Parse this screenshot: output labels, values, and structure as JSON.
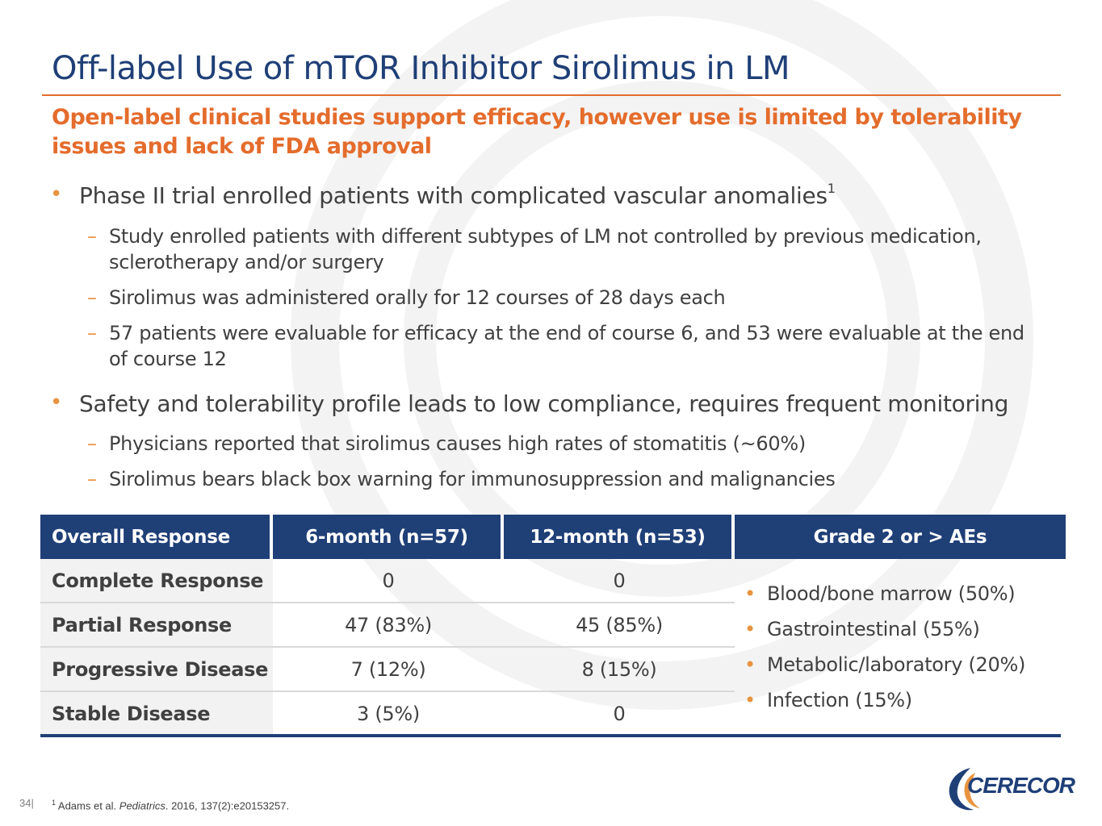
{
  "title": "Off-label Use of mTOR Inhibitor Sirolimus in LM",
  "subtitle": "Open-label clinical studies support efficacy, however use is limited by tolerability issues and lack of FDA approval",
  "bullets": [
    {
      "text": "Phase II trial enrolled patients with complicated vascular anomalies",
      "sup": "1",
      "sub": [
        "Study enrolled patients with different subtypes of LM not controlled by previous medication, sclerotherapy and/or surgery",
        "Sirolimus was administered orally for 12 courses of 28 days each",
        "57 patients were evaluable for efficacy at the end of course 6, and 53 were evaluable at the end of course 12"
      ]
    },
    {
      "text": "Safety and tolerability profile leads to low compliance, requires frequent monitoring",
      "sub": [
        "Physicians reported that sirolimus causes high rates of stomatitis (~60%)",
        "Sirolimus bears black box warning for immunosuppression and malignancies"
      ]
    }
  ],
  "bullet_marker": "•",
  "sub_marker": "–",
  "table": {
    "headers": [
      "Overall Response",
      "6-month (n=57)",
      "12-month (n=53)",
      "Grade 2 or > AEs"
    ],
    "rows": [
      [
        "Complete Response",
        "0",
        "0"
      ],
      [
        "Partial Response",
        "47 (83%)",
        "45 (85%)"
      ],
      [
        "Progressive Disease",
        "7 (12%)",
        "8 (15%)"
      ],
      [
        "Stable Disease",
        "3 (5%)",
        "0"
      ]
    ],
    "adverse_events": [
      "Blood/bone marrow (50%)",
      "Gastrointestinal (55%)",
      "Metabolic/laboratory (20%)",
      "Infection (15%)"
    ]
  },
  "footer": {
    "page_number": "34|",
    "footnote_sup": "1",
    "footnote_pre": " Adams et al. ",
    "footnote_journal": "Pediatrics",
    "footnote_post": ". 2016, 137(2):e20153257."
  },
  "logo": {
    "text": "CERECOR",
    "icon": "cerecor-swoosh-icon"
  },
  "colors": {
    "navy": "#1f3f77",
    "orange": "#e46c2c",
    "bullet_orange": "#e8933f",
    "row_label_bg": "#f2f2f2"
  }
}
